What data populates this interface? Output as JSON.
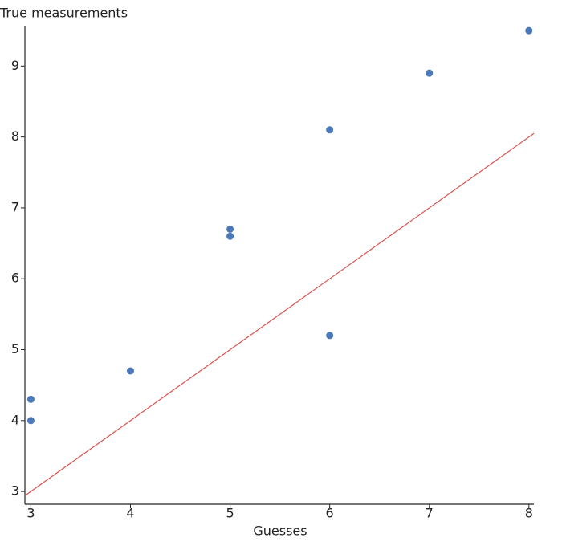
{
  "chart_data": {
    "type": "scatter",
    "x_label": "Guesses",
    "y_label": "True measurements",
    "series": [
      {
        "color": "#4a78b8",
        "x": [
          3,
          3,
          4,
          5,
          5,
          6,
          6,
          7,
          8
        ],
        "values": [
          4.3,
          4.0,
          4.7,
          6.7,
          6.6,
          8.1,
          5.2,
          8.9,
          9.5
        ]
      }
    ],
    "reference_line": {
      "color": "#d9534f",
      "x": [
        2.94,
        8.05
      ],
      "values": [
        2.94,
        8.05
      ]
    },
    "xlim": [
      2.94,
      8.05
    ],
    "xticks": [
      3,
      4,
      5,
      6,
      7,
      8
    ],
    "ylim": [
      2.82,
      9.57
    ],
    "yticks": [
      3,
      4,
      5,
      6,
      7,
      8,
      9
    ]
  }
}
